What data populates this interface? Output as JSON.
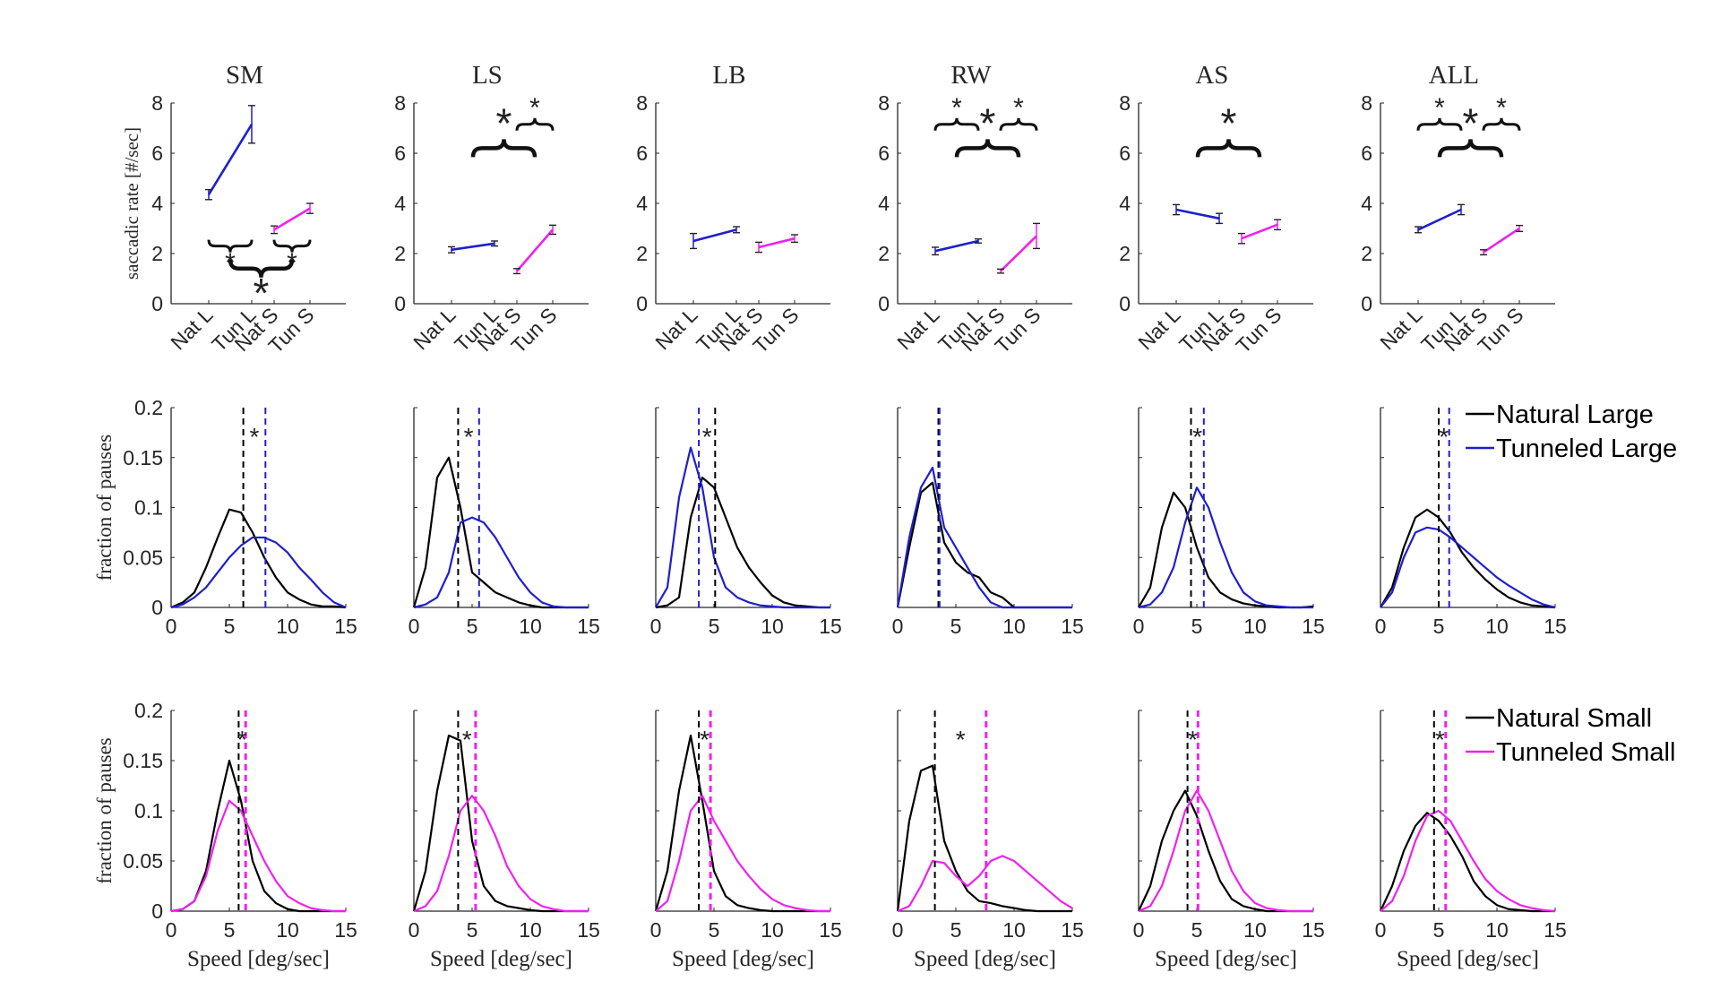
{
  "chart_data": {
    "type": "line",
    "panels": [
      "SM",
      "LS",
      "LB",
      "RW",
      "AS",
      "ALL"
    ],
    "row_rate": {
      "ylabel": "saccadic rate [#/sec]",
      "categories": [
        "Nat L",
        "Tun L",
        "Nat S",
        "Tun S"
      ],
      "yticks": [
        "0",
        "2",
        "4",
        "6",
        "8"
      ],
      "ylim": [
        0,
        8
      ],
      "colors": {
        "large": "#1f1fcc",
        "small": "#ee22ee"
      },
      "significance_marker": "*",
      "data": [
        {
          "panel": "SM",
          "nat_l": 4.35,
          "tun_l": 7.15,
          "nat_s": 2.95,
          "tun_s": 3.8,
          "err": [
            0.2,
            0.75,
            0.15,
            0.2
          ],
          "brackets": [
            {
              "from": 0,
              "to": 1,
              "y": 2.3,
              "size": "small",
              "dir": "below"
            },
            {
              "from": 2,
              "to": 3,
              "y": 2.3,
              "size": "small",
              "dir": "below"
            },
            {
              "from": 0.5,
              "to": 2.5,
              "y": 1.4,
              "size": "large",
              "dir": "below"
            }
          ]
        },
        {
          "panel": "LS",
          "nat_l": 2.15,
          "tun_l": 2.4,
          "nat_s": 1.3,
          "tun_s": 2.95,
          "err": [
            0.12,
            0.1,
            0.1,
            0.18
          ],
          "brackets": [
            {
              "from": 0.5,
              "to": 2.5,
              "y": 6.2,
              "size": "large",
              "dir": "above"
            },
            {
              "from": 2,
              "to": 3,
              "y": 7.15,
              "size": "small",
              "dir": "above"
            }
          ]
        },
        {
          "panel": "LB",
          "nat_l": 2.5,
          "tun_l": 2.95,
          "nat_s": 2.25,
          "tun_s": 2.6,
          "err": [
            0.3,
            0.12,
            0.2,
            0.15
          ],
          "brackets": []
        },
        {
          "panel": "RW",
          "nat_l": 2.1,
          "tun_l": 2.5,
          "nat_s": 1.3,
          "tun_s": 2.7,
          "err": [
            0.15,
            0.08,
            0.08,
            0.5
          ],
          "brackets": [
            {
              "from": 0,
              "to": 1,
              "y": 7.15,
              "size": "small",
              "dir": "above"
            },
            {
              "from": 2,
              "to": 3,
              "y": 7.15,
              "size": "small",
              "dir": "above"
            },
            {
              "from": 0.5,
              "to": 2.5,
              "y": 6.2,
              "size": "large",
              "dir": "above"
            }
          ]
        },
        {
          "panel": "AS",
          "nat_l": 3.75,
          "tun_l": 3.4,
          "nat_s": 2.6,
          "tun_s": 3.15,
          "err": [
            0.2,
            0.2,
            0.2,
            0.2
          ],
          "brackets": [
            {
              "from": 0.5,
              "to": 2.5,
              "y": 6.2,
              "size": "large",
              "dir": "above"
            }
          ]
        },
        {
          "panel": "ALL",
          "nat_l": 2.95,
          "tun_l": 3.75,
          "nat_s": 2.05,
          "tun_s": 3.0,
          "err": [
            0.12,
            0.2,
            0.1,
            0.12
          ],
          "brackets": [
            {
              "from": 0,
              "to": 1,
              "y": 7.15,
              "size": "small",
              "dir": "above"
            },
            {
              "from": 2,
              "to": 3,
              "y": 7.15,
              "size": "small",
              "dir": "above"
            },
            {
              "from": 0.5,
              "to": 2.5,
              "y": 6.2,
              "size": "large",
              "dir": "above"
            }
          ]
        }
      ]
    },
    "row_large": {
      "ylabel": "fraction of pauses",
      "ylim": [
        0,
        0.2
      ],
      "yticks": [
        "0",
        "0.05",
        "0.1",
        "0.15",
        "0.2"
      ],
      "xlim": [
        0,
        15
      ],
      "xticks": [
        "0",
        "5",
        "10",
        "15"
      ],
      "legend": [
        "Natural Large",
        "Tunneled Large"
      ],
      "colors": [
        "#000000",
        "#1f1fcc"
      ],
      "x": [
        0,
        1,
        2,
        3,
        4,
        5,
        6,
        7,
        8,
        9,
        10,
        11,
        12,
        13,
        14,
        15
      ],
      "data": [
        {
          "panel": "SM",
          "natural": [
            0,
            0.005,
            0.015,
            0.04,
            0.07,
            0.098,
            0.095,
            0.075,
            0.05,
            0.03,
            0.015,
            0.008,
            0.003,
            0.001,
            0.001,
            0
          ],
          "tunneled": [
            0,
            0.003,
            0.01,
            0.02,
            0.035,
            0.05,
            0.062,
            0.07,
            0.07,
            0.065,
            0.055,
            0.04,
            0.028,
            0.015,
            0.005,
            0
          ],
          "mean_natural": 6.2,
          "mean_tunneled": 8.1,
          "star": "*",
          "star_color": "#222222"
        },
        {
          "panel": "LS",
          "natural": [
            0,
            0.04,
            0.13,
            0.15,
            0.1,
            0.035,
            0.025,
            0.015,
            0.01,
            0.005,
            0.002,
            0,
            0,
            0,
            0,
            0
          ],
          "tunneled": [
            0,
            0.003,
            0.01,
            0.035,
            0.085,
            0.09,
            0.085,
            0.07,
            0.05,
            0.03,
            0.015,
            0.005,
            0.001,
            0,
            0,
            0
          ],
          "mean_natural": 3.8,
          "mean_tunneled": 5.6,
          "star": "*",
          "star_color": "#222222"
        },
        {
          "panel": "LB",
          "natural": [
            0,
            0.002,
            0.01,
            0.09,
            0.13,
            0.12,
            0.09,
            0.06,
            0.04,
            0.025,
            0.012,
            0.005,
            0.002,
            0.001,
            0,
            0
          ],
          "tunneled": [
            0,
            0.02,
            0.11,
            0.16,
            0.12,
            0.05,
            0.02,
            0.01,
            0.005,
            0.002,
            0.001,
            0,
            0,
            0,
            0,
            0
          ],
          "mean_natural": 5.1,
          "mean_tunneled": 3.7,
          "star": "*",
          "star_color": "#dd0000"
        },
        {
          "panel": "RW",
          "natural": [
            0,
            0.06,
            0.115,
            0.125,
            0.065,
            0.045,
            0.035,
            0.03,
            0.015,
            0.01,
            0,
            0,
            0,
            0,
            0,
            0
          ],
          "tunneled": [
            0,
            0.07,
            0.12,
            0.14,
            0.08,
            0.06,
            0.04,
            0.02,
            0.005,
            0,
            0,
            0,
            0,
            0,
            0,
            0
          ],
          "mean_natural": 3.5,
          "mean_tunneled": 3.6,
          "star": "",
          "star_color": "#222222"
        },
        {
          "panel": "AS",
          "natural": [
            0,
            0.02,
            0.08,
            0.115,
            0.1,
            0.06,
            0.03,
            0.015,
            0.008,
            0.004,
            0.002,
            0.001,
            0,
            0,
            0,
            0.001
          ],
          "tunneled": [
            0,
            0.003,
            0.015,
            0.04,
            0.085,
            0.12,
            0.1,
            0.065,
            0.035,
            0.015,
            0.006,
            0.002,
            0.001,
            0,
            0,
            0
          ],
          "mean_natural": 4.5,
          "mean_tunneled": 5.6,
          "star": "*",
          "star_color": "#222222"
        },
        {
          "panel": "ALL",
          "natural": [
            0,
            0.02,
            0.06,
            0.09,
            0.098,
            0.09,
            0.075,
            0.055,
            0.04,
            0.028,
            0.018,
            0.01,
            0.005,
            0.002,
            0.001,
            0
          ],
          "tunneled": [
            0,
            0.015,
            0.05,
            0.075,
            0.08,
            0.078,
            0.07,
            0.06,
            0.05,
            0.04,
            0.03,
            0.022,
            0.015,
            0.008,
            0.003,
            0
          ],
          "mean_natural": 5.0,
          "mean_tunneled": 5.9,
          "star": "*",
          "star_color": "#222222"
        }
      ]
    },
    "row_small": {
      "ylabel": "fraction of pauses",
      "xlabel": "Speed [deg/sec]",
      "ylim": [
        0,
        0.2
      ],
      "yticks": [
        "0",
        "0.05",
        "0.1",
        "0.15",
        "0.2"
      ],
      "xlim": [
        0,
        15
      ],
      "xticks": [
        "0",
        "5",
        "10",
        "15"
      ],
      "legend": [
        "Natural Small",
        "Tunneled Small"
      ],
      "colors": [
        "#000000",
        "#ee22ee"
      ],
      "x": [
        0,
        1,
        2,
        3,
        4,
        5,
        6,
        7,
        8,
        9,
        10,
        11,
        12,
        13,
        14,
        15
      ],
      "data": [
        {
          "panel": "SM",
          "natural": [
            0,
            0.002,
            0.01,
            0.04,
            0.1,
            0.15,
            0.11,
            0.05,
            0.02,
            0.008,
            0.002,
            0,
            0,
            0,
            0,
            0
          ],
          "tunneled": [
            0,
            0.002,
            0.01,
            0.035,
            0.08,
            0.11,
            0.1,
            0.075,
            0.05,
            0.03,
            0.015,
            0.008,
            0.003,
            0.001,
            0,
            0
          ],
          "mean_natural": 5.8,
          "mean_tunneled": 6.4,
          "star": "*",
          "star_color": "#222222"
        },
        {
          "panel": "LS",
          "natural": [
            0,
            0.04,
            0.12,
            0.175,
            0.17,
            0.07,
            0.025,
            0.01,
            0.005,
            0.003,
            0.001,
            0,
            0,
            0,
            0,
            0
          ],
          "tunneled": [
            0,
            0.005,
            0.02,
            0.055,
            0.1,
            0.115,
            0.1,
            0.075,
            0.045,
            0.025,
            0.012,
            0.005,
            0.002,
            0,
            0,
            0
          ],
          "mean_natural": 3.8,
          "mean_tunneled": 5.3,
          "star": "*",
          "star_color": "#222222"
        },
        {
          "panel": "LB",
          "natural": [
            0,
            0.04,
            0.12,
            0.175,
            0.11,
            0.04,
            0.015,
            0.006,
            0.003,
            0.001,
            0,
            0,
            0,
            0,
            0,
            0
          ],
          "tunneled": [
            0,
            0.01,
            0.05,
            0.1,
            0.115,
            0.09,
            0.07,
            0.05,
            0.035,
            0.022,
            0.012,
            0.006,
            0.003,
            0.001,
            0,
            0
          ],
          "mean_natural": 3.7,
          "mean_tunneled": 4.7,
          "star": "*",
          "star_color": "#222222"
        },
        {
          "panel": "RW",
          "natural": [
            0,
            0.09,
            0.14,
            0.145,
            0.07,
            0.04,
            0.02,
            0.01,
            0.008,
            0.005,
            0.003,
            0.001,
            0,
            0,
            0,
            0
          ],
          "tunneled": [
            0,
            0.005,
            0.025,
            0.05,
            0.048,
            0.035,
            0.025,
            0.035,
            0.05,
            0.055,
            0.05,
            0.04,
            0.03,
            0.02,
            0.01,
            0.003
          ],
          "mean_natural": 3.2,
          "mean_tunneled": 7.6,
          "star": "*",
          "star_color": "#222222"
        },
        {
          "panel": "AS",
          "natural": [
            0,
            0.025,
            0.07,
            0.1,
            0.12,
            0.095,
            0.06,
            0.03,
            0.012,
            0.005,
            0.002,
            0,
            0,
            0,
            0,
            0
          ],
          "tunneled": [
            0,
            0.005,
            0.025,
            0.06,
            0.1,
            0.12,
            0.1,
            0.07,
            0.04,
            0.02,
            0.008,
            0.003,
            0.001,
            0,
            0,
            0
          ],
          "mean_natural": 4.2,
          "mean_tunneled": 5.1,
          "star": "*",
          "star_color": "#222222"
        },
        {
          "panel": "ALL",
          "natural": [
            0,
            0.025,
            0.06,
            0.085,
            0.098,
            0.09,
            0.075,
            0.055,
            0.03,
            0.015,
            0.006,
            0.002,
            0.001,
            0,
            0,
            0
          ],
          "tunneled": [
            0,
            0.01,
            0.035,
            0.07,
            0.095,
            0.1,
            0.09,
            0.07,
            0.05,
            0.032,
            0.02,
            0.012,
            0.006,
            0.003,
            0.001,
            0
          ],
          "mean_natural": 4.6,
          "mean_tunneled": 5.6,
          "star": "*",
          "star_color": "#222222"
        }
      ]
    }
  }
}
